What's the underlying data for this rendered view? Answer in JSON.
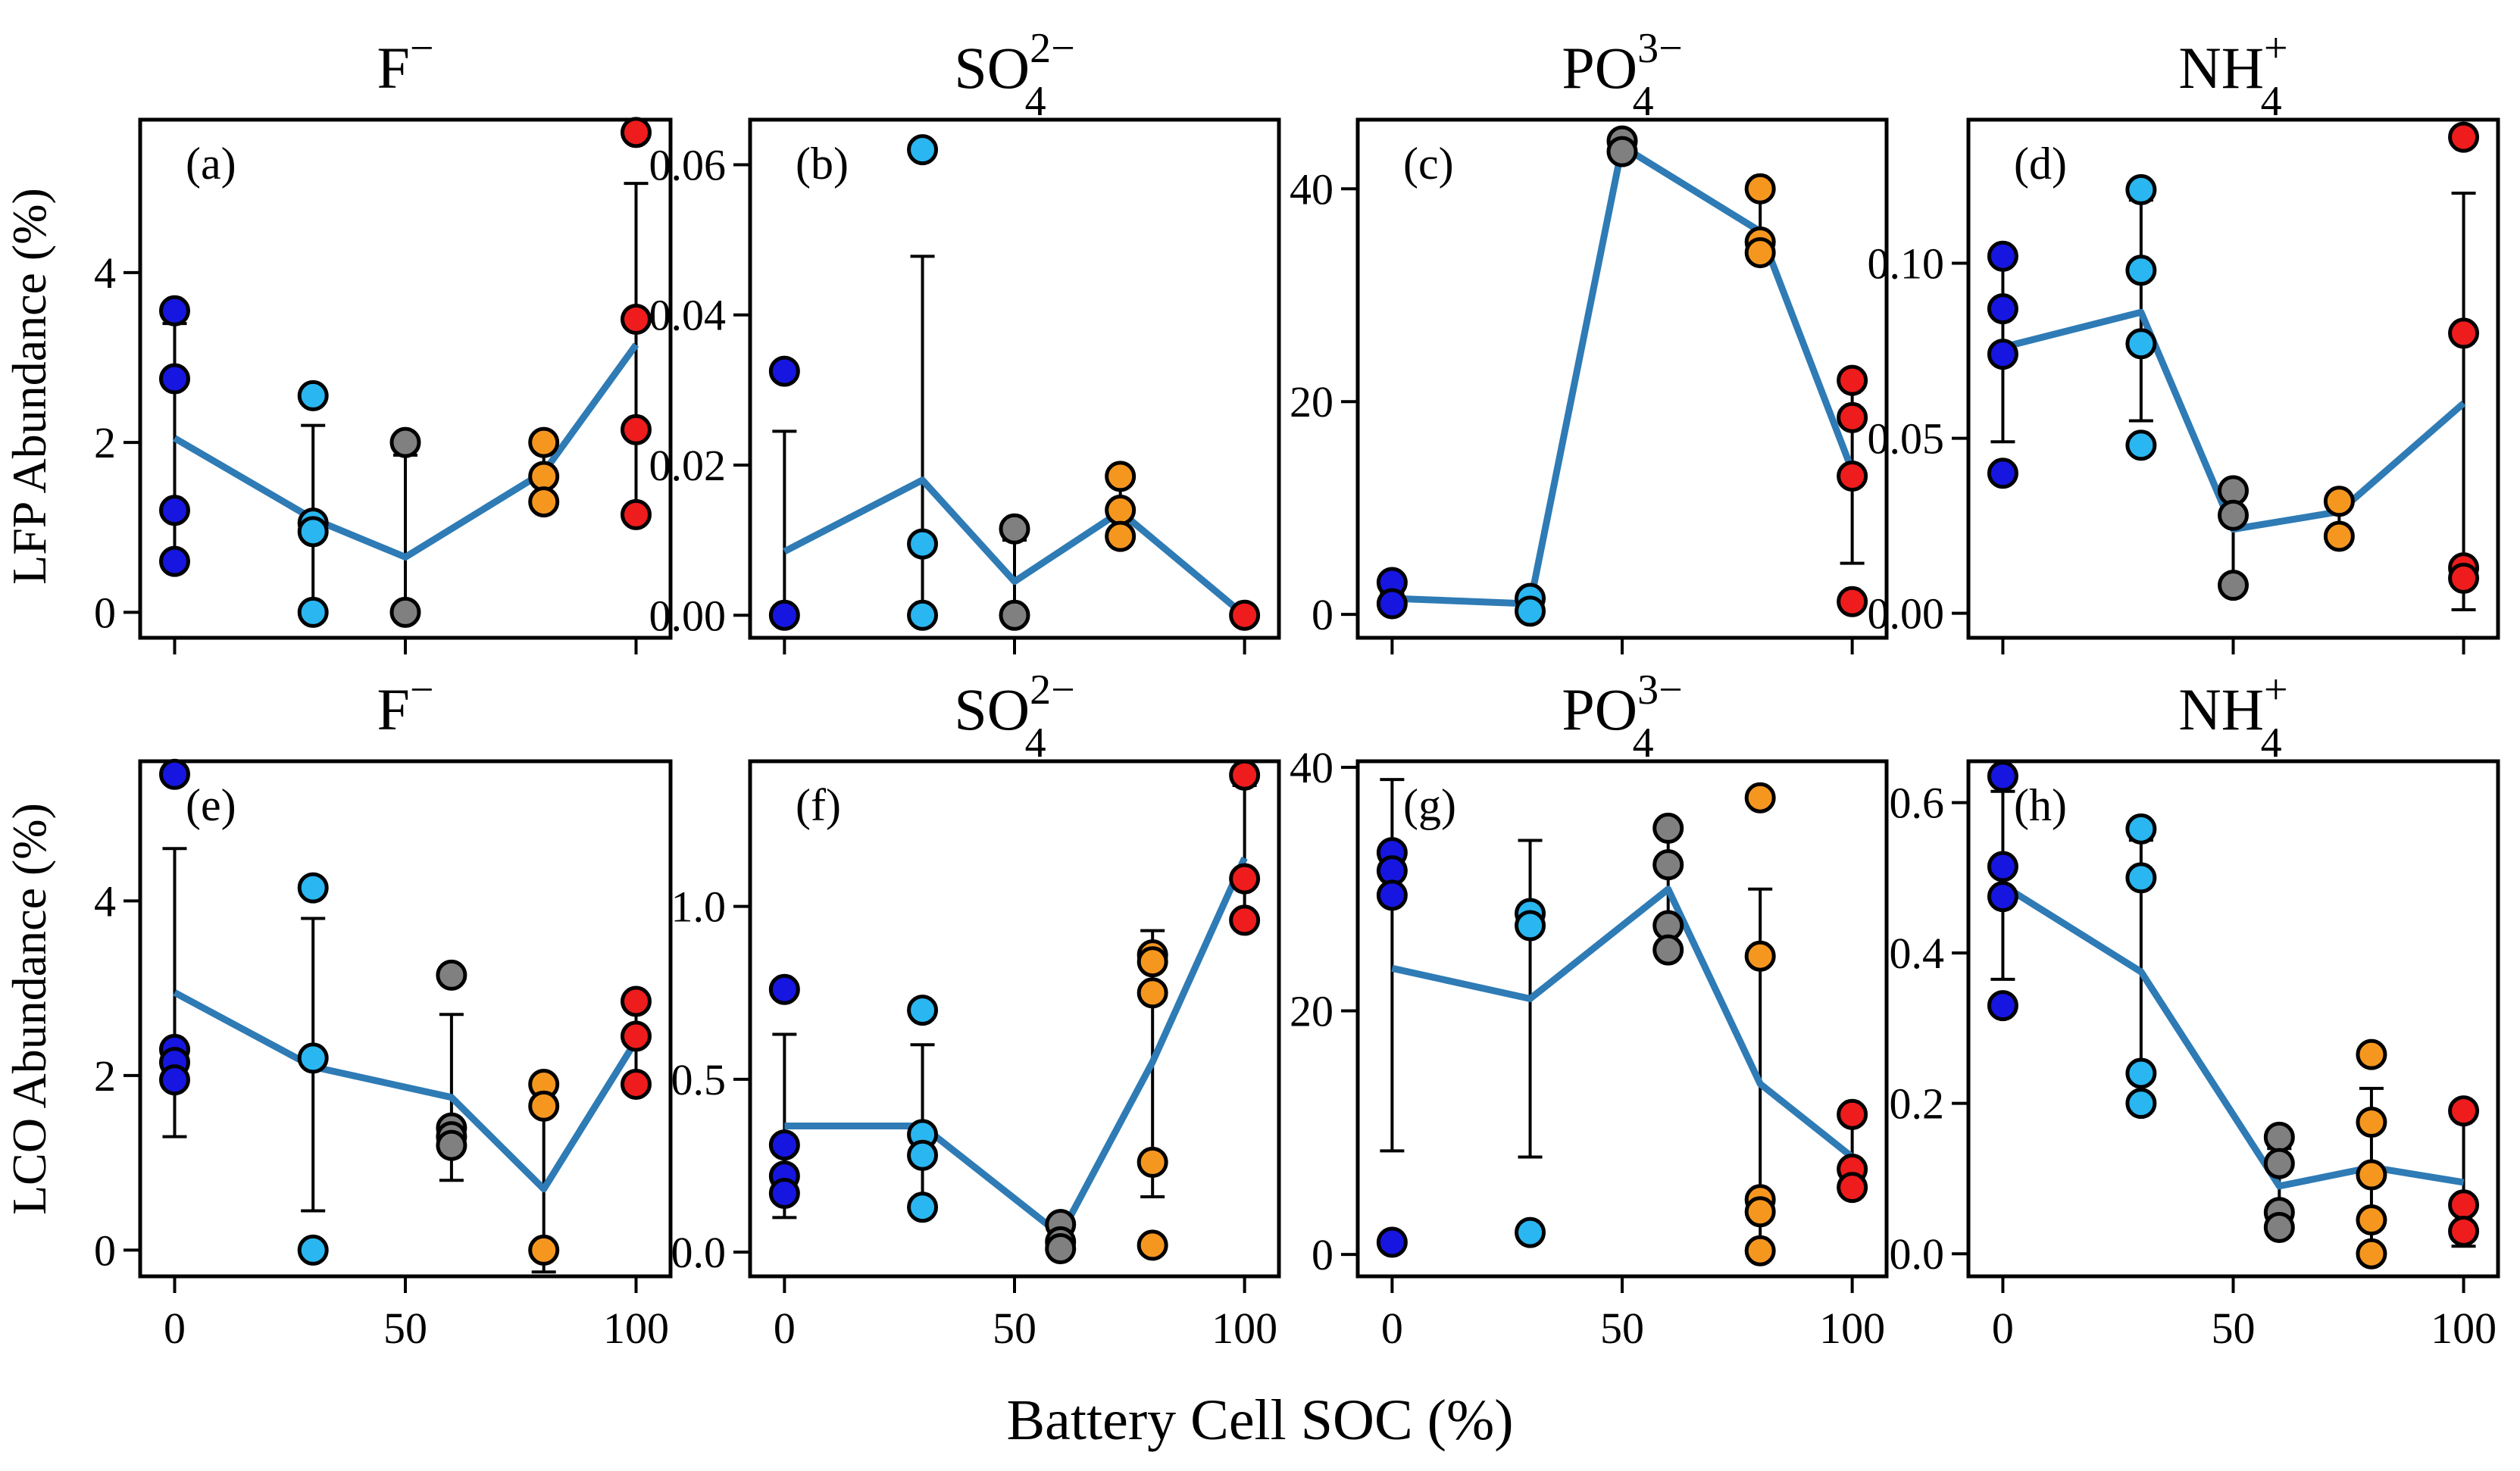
{
  "figure": {
    "ylabel_top": "LFP Abundance (%)",
    "ylabel_bottom": "LCO Abundance (%)",
    "xlabel": "Battery Cell SOC (%)"
  },
  "colors": {
    "mean_line": "#2e7bb5",
    "soc_0": "#1616e0",
    "soc_30": "#2ab6f0",
    "soc_60": "#808080",
    "soc_80": "#f5971f",
    "soc_100": "#ee1c1c"
  },
  "chart_data": [
    {
      "type": "scatter",
      "panel": "(a)",
      "ion": "F",
      "sub": "",
      "sup": "−",
      "row": 0,
      "col": 0,
      "ylim": [
        -0.3,
        5.8
      ],
      "yticks": [
        0,
        2,
        4
      ],
      "yticklabels": [
        "0",
        "2",
        "4"
      ],
      "show_xticklabels": false,
      "groups": [
        {
          "x": 0,
          "points": [
            3.55,
            2.75,
            1.2,
            0.6
          ],
          "mean": 2.05,
          "err_low": 0.6,
          "err_high": 3.4
        },
        {
          "x": 30,
          "points": [
            2.55,
            1.05,
            0.95,
            0.0
          ],
          "mean": 1.1,
          "err_low": 0.0,
          "err_high": 2.2
        },
        {
          "x": 50,
          "points": [
            2.0,
            0.0
          ],
          "mean": 0.65,
          "err_low": 0.0,
          "err_high": 1.85
        },
        {
          "x": 80,
          "points": [
            2.0,
            1.6,
            1.3
          ],
          "mean": 1.65,
          "err_low": 1.3,
          "err_high": 1.95
        },
        {
          "x": 100,
          "points": [
            5.65,
            3.45,
            2.15,
            1.15
          ],
          "mean": 3.15,
          "err_low": 1.15,
          "err_high": 5.05
        }
      ]
    },
    {
      "type": "scatter",
      "panel": "(b)",
      "ion": "SO",
      "sub": "4",
      "sup": "2−",
      "row": 0,
      "col": 1,
      "ylim": [
        -0.003,
        0.066
      ],
      "yticks": [
        0,
        0.02,
        0.04,
        0.06
      ],
      "yticklabels": [
        "0.00",
        "0.02",
        "0.04",
        "0.06"
      ],
      "show_xticklabels": false,
      "groups": [
        {
          "x": 0,
          "points": [
            0.0325,
            0.0
          ],
          "mean": 0.0085,
          "err_low": 0.0,
          "err_high": 0.0245
        },
        {
          "x": 30,
          "points": [
            0.062,
            0.0095,
            0.0
          ],
          "mean": 0.018,
          "err_low": 0.0,
          "err_high": 0.0478
        },
        {
          "x": 50,
          "points": [
            0.0115,
            0.0
          ],
          "mean": 0.0045,
          "err_low": 0.0,
          "err_high": 0.01
        },
        {
          "x": 73,
          "points": [
            0.0185,
            0.014,
            0.0105
          ],
          "mean": 0.0138,
          "err_low": 0.0095,
          "err_high": 0.0185
        },
        {
          "x": 100,
          "points": [
            0.0
          ],
          "mean": 0.0,
          "err_low": 0.0,
          "err_high": 0.0
        }
      ]
    },
    {
      "type": "scatter",
      "panel": "(c)",
      "ion": "PO",
      "sub": "4",
      "sup": "3−",
      "row": 0,
      "col": 2,
      "ylim": [
        -2.2,
        46.5
      ],
      "yticks": [
        0,
        20,
        40
      ],
      "yticklabels": [
        "0",
        "20",
        "40"
      ],
      "show_xticklabels": false,
      "groups": [
        {
          "x": 0,
          "points": [
            3.0,
            1.0
          ],
          "mean": 1.5,
          "err_low": 1.0,
          "err_high": 2.0
        },
        {
          "x": 30,
          "points": [
            1.5,
            0.3
          ],
          "mean": 1.0,
          "err_low": 0.3,
          "err_high": 1.6
        },
        {
          "x": 50,
          "points": [
            44.5,
            43.5
          ],
          "mean": 44.0,
          "err_low": 43.3,
          "err_high": 44.7
        },
        {
          "x": 80,
          "points": [
            40.0,
            35.0,
            34.0
          ],
          "mean": 36.0,
          "err_low": 34.0,
          "err_high": 39.5
        },
        {
          "x": 100,
          "points": [
            22.0,
            18.5,
            13.0,
            1.2
          ],
          "mean": 13.5,
          "err_low": 4.8,
          "err_high": 22.0
        }
      ]
    },
    {
      "type": "scatter",
      "panel": "(d)",
      "ion": "NH",
      "sub": "4",
      "sup": "+",
      "row": 0,
      "col": 3,
      "ylim": [
        -0.007,
        0.141
      ],
      "yticks": [
        0,
        0.05,
        0.1
      ],
      "yticklabels": [
        "0.00",
        "0.05",
        "0.10"
      ],
      "show_xticklabels": false,
      "groups": [
        {
          "x": 0,
          "points": [
            0.102,
            0.087,
            0.074,
            0.04
          ],
          "mean": 0.076,
          "err_low": 0.049,
          "err_high": 0.102
        },
        {
          "x": 30,
          "points": [
            0.121,
            0.098,
            0.077,
            0.048
          ],
          "mean": 0.086,
          "err_low": 0.055,
          "err_high": 0.118
        },
        {
          "x": 50,
          "points": [
            0.035,
            0.028,
            0.008
          ],
          "mean": 0.024,
          "err_low": 0.01,
          "err_high": 0.034
        },
        {
          "x": 73,
          "points": [
            0.032,
            0.022
          ],
          "mean": 0.029,
          "err_low": 0.022,
          "err_high": 0.034
        },
        {
          "x": 100,
          "points": [
            0.136,
            0.08,
            0.013,
            0.01
          ],
          "mean": 0.06,
          "err_low": 0.001,
          "err_high": 0.12
        }
      ]
    },
    {
      "type": "scatter",
      "panel": "(e)",
      "ion": "F",
      "sub": "",
      "sup": "−",
      "row": 1,
      "col": 0,
      "ylim": [
        -0.3,
        5.6
      ],
      "yticks": [
        0,
        2,
        4
      ],
      "yticklabels": [
        "0",
        "2",
        "4"
      ],
      "show_xticklabels": true,
      "xticks": [
        0,
        50,
        100
      ],
      "xticklabels": [
        "0",
        "50",
        "100"
      ],
      "groups": [
        {
          "x": 0,
          "points": [
            5.45,
            2.3,
            2.15,
            1.95
          ],
          "mean": 2.95,
          "err_low": 1.3,
          "err_high": 4.6
        },
        {
          "x": 30,
          "points": [
            4.15,
            2.2,
            0.0
          ],
          "mean": 2.1,
          "err_low": 0.45,
          "err_high": 3.8
        },
        {
          "x": 60,
          "points": [
            3.15,
            1.4,
            1.3,
            1.2
          ],
          "mean": 1.75,
          "err_low": 0.8,
          "err_high": 2.7
        },
        {
          "x": 80,
          "points": [
            1.9,
            1.65,
            0.0
          ],
          "mean": 0.7,
          "err_low": -0.25,
          "err_high": 1.6
        },
        {
          "x": 100,
          "points": [
            2.85,
            2.45,
            1.9
          ],
          "mean": 2.4,
          "err_low": 1.9,
          "err_high": 2.8
        }
      ]
    },
    {
      "type": "scatter",
      "panel": "(f)",
      "ion": "SO",
      "sub": "4",
      "sup": "2−",
      "row": 1,
      "col": 1,
      "ylim": [
        -0.07,
        1.42
      ],
      "yticks": [
        0,
        0.5,
        1.0
      ],
      "yticklabels": [
        "0.0",
        "0.5",
        "1.0"
      ],
      "show_xticklabels": true,
      "xticks": [
        0,
        50,
        100
      ],
      "xticklabels": [
        "0",
        "50",
        "100"
      ],
      "groups": [
        {
          "x": 0,
          "points": [
            0.76,
            0.31,
            0.22,
            0.17
          ],
          "mean": 0.365,
          "err_low": 0.1,
          "err_high": 0.63
        },
        {
          "x": 30,
          "points": [
            0.7,
            0.34,
            0.28,
            0.13
          ],
          "mean": 0.365,
          "err_low": 0.13,
          "err_high": 0.6
        },
        {
          "x": 60,
          "points": [
            0.08,
            0.03,
            0.01
          ],
          "mean": 0.05,
          "err_low": 0.01,
          "err_high": 0.08
        },
        {
          "x": 80,
          "points": [
            0.86,
            0.84,
            0.75,
            0.26,
            0.02
          ],
          "mean": 0.55,
          "err_low": 0.16,
          "err_high": 0.93
        },
        {
          "x": 100,
          "points": [
            1.38,
            1.08,
            0.96
          ],
          "mean": 1.14,
          "err_low": 0.96,
          "err_high": 1.35
        }
      ]
    },
    {
      "type": "scatter",
      "panel": "(g)",
      "ion": "PO",
      "sub": "4",
      "sup": "3−",
      "row": 1,
      "col": 2,
      "ylim": [
        -1.8,
        40.5
      ],
      "yticks": [
        0,
        20,
        40
      ],
      "yticklabels": [
        "0",
        "20",
        "40"
      ],
      "show_xticklabels": true,
      "xticks": [
        0,
        50,
        100
      ],
      "xticklabels": [
        "0",
        "50",
        "100"
      ],
      "groups": [
        {
          "x": 0,
          "points": [
            33.0,
            31.5,
            29.5,
            1.0
          ],
          "mean": 23.5,
          "err_low": 8.5,
          "err_high": 39.0
        },
        {
          "x": 30,
          "points": [
            28.0,
            27.0,
            1.8
          ],
          "mean": 21.0,
          "err_low": 8.0,
          "err_high": 34.0
        },
        {
          "x": 60,
          "points": [
            35.0,
            32.0,
            27.0,
            25.0
          ],
          "mean": 30.0,
          "err_low": 25.0,
          "err_high": 35.0
        },
        {
          "x": 80,
          "points": [
            37.5,
            24.5,
            4.5,
            3.5,
            0.3
          ],
          "mean": 14.0,
          "err_low": 0.0,
          "err_high": 30.0
        },
        {
          "x": 100,
          "points": [
            11.5,
            7.0,
            5.5
          ],
          "mean": 8.0,
          "err_low": 5.5,
          "err_high": 11.0
        }
      ]
    },
    {
      "type": "scatter",
      "panel": "(h)",
      "ion": "NH",
      "sub": "4",
      "sup": "+",
      "row": 1,
      "col": 3,
      "ylim": [
        -0.03,
        0.655
      ],
      "yticks": [
        0,
        0.2,
        0.4,
        0.6
      ],
      "yticklabels": [
        "0.0",
        "0.2",
        "0.4",
        "0.6"
      ],
      "show_xticklabels": true,
      "xticks": [
        0,
        50,
        100
      ],
      "xticklabels": [
        "0",
        "50",
        "100"
      ],
      "groups": [
        {
          "x": 0,
          "points": [
            0.635,
            0.515,
            0.475,
            0.33
          ],
          "mean": 0.49,
          "err_low": 0.365,
          "err_high": 0.615
        },
        {
          "x": 30,
          "points": [
            0.565,
            0.5,
            0.24,
            0.2
          ],
          "mean": 0.375,
          "err_low": 0.2,
          "err_high": 0.55
        },
        {
          "x": 60,
          "points": [
            0.155,
            0.12,
            0.055,
            0.035
          ],
          "mean": 0.09,
          "err_low": 0.035,
          "err_high": 0.14
        },
        {
          "x": 80,
          "points": [
            0.265,
            0.175,
            0.105,
            0.045,
            0.0
          ],
          "mean": 0.115,
          "err_low": 0.005,
          "err_high": 0.22
        },
        {
          "x": 100,
          "points": [
            0.19,
            0.065,
            0.03
          ],
          "mean": 0.095,
          "err_low": 0.01,
          "err_high": 0.19
        }
      ]
    }
  ]
}
